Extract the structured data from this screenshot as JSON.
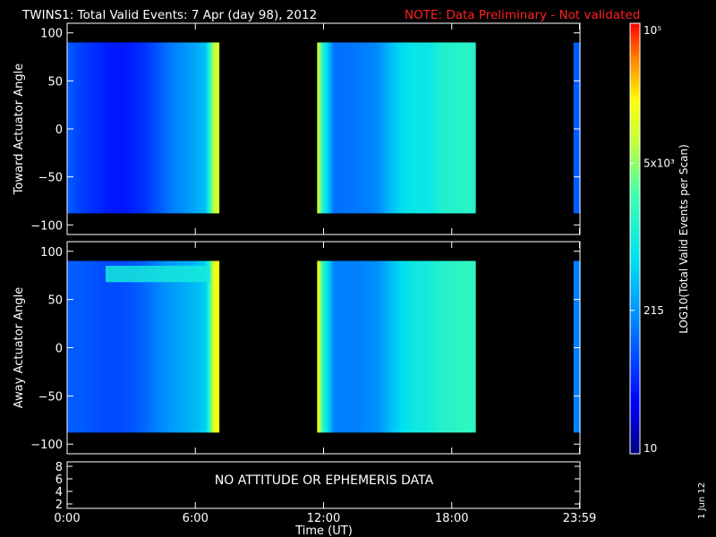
{
  "header": {
    "title": "TWINS1: Total Valid Events:  7 Apr (day  98), 2012",
    "note": "NOTE: Data Preliminary - Not validated",
    "note_color": "#ff2020"
  },
  "footer": {
    "xlabel": "Time (UT)",
    "side_date": "1 Jun 12"
  },
  "colorbar": {
    "label": "LOG10(Total Valid Events per Scan)",
    "tick_labels": [
      "10",
      "215",
      "5x10³",
      "10⁵"
    ],
    "tick_values": [
      10,
      215,
      5000,
      100000
    ]
  },
  "attitude_panel": {
    "message": "NO ATTITUDE OR EPHEMERIS DATA",
    "ytick_labels": [
      "8",
      "6",
      "4",
      "2"
    ]
  },
  "chart_data": [
    {
      "type": "heatmap",
      "ylabel": "Toward Actuator Angle",
      "x_unit": "hours UT",
      "xlim": [
        0,
        24
      ],
      "ylim": [
        -110,
        110
      ],
      "yticks": [
        100,
        50,
        0,
        -50,
        -100
      ],
      "xtick_labels": [
        "0:00",
        "6:00",
        "12:00",
        "18:00",
        "23:59"
      ],
      "xtick_values": [
        0,
        6,
        12,
        18,
        23.98
      ],
      "data_y_range": [
        -88,
        90
      ],
      "coverage_intervals": [
        [
          0,
          7.1
        ],
        [
          11.7,
          19.1
        ],
        [
          23.7,
          24
        ]
      ],
      "profile_hours": [
        0,
        0.6,
        1.2,
        1.8,
        2.4,
        3.0,
        3.6,
        4.2,
        4.8,
        5.4,
        6.0,
        6.5,
        6.9,
        11.75,
        11.95,
        12.5,
        13.5,
        14.5,
        15.2,
        15.7,
        16.3,
        16.9,
        17.5,
        18.2,
        18.8,
        23.8
      ],
      "profile_log10_values": [
        2.0,
        1.85,
        1.75,
        1.65,
        1.6,
        1.65,
        1.75,
        1.95,
        2.15,
        2.3,
        2.45,
        2.6,
        4.0,
        4.0,
        3.2,
        2.1,
        2.15,
        2.25,
        2.6,
        2.8,
        2.9,
        2.9,
        3.1,
        3.15,
        3.2,
        2.0
      ]
    },
    {
      "type": "heatmap",
      "ylabel": "Away Actuator Angle",
      "x_unit": "hours UT",
      "xlim": [
        0,
        24
      ],
      "ylim": [
        -110,
        110
      ],
      "yticks": [
        100,
        50,
        0,
        -50,
        -100
      ],
      "xtick_labels": [
        "0:00",
        "6:00",
        "12:00",
        "18:00",
        "23:59"
      ],
      "xtick_values": [
        0,
        6,
        12,
        18,
        23.98
      ],
      "data_y_range": [
        -88,
        90
      ],
      "coverage_intervals": [
        [
          0,
          7.1
        ],
        [
          11.7,
          19.1
        ],
        [
          23.7,
          24
        ]
      ],
      "profile_hours": [
        0,
        0.6,
        1.2,
        1.8,
        2.4,
        3.0,
        3.6,
        4.2,
        4.8,
        5.4,
        6.0,
        6.5,
        6.9,
        11.75,
        11.95,
        12.5,
        13.5,
        14.5,
        15.2,
        15.7,
        16.3,
        16.9,
        17.5,
        18.2,
        18.8,
        23.8
      ],
      "profile_log10_values": [
        2.0,
        2.0,
        1.95,
        1.9,
        1.9,
        1.95,
        2.05,
        2.2,
        2.35,
        2.45,
        2.55,
        2.7,
        4.2,
        4.2,
        3.3,
        2.2,
        2.2,
        2.3,
        2.6,
        2.8,
        2.95,
        3.0,
        3.15,
        3.2,
        3.25,
        2.2
      ],
      "band": {
        "y_from": 68,
        "y_to": 85,
        "x_from": 1.8,
        "x_to": 6.7,
        "log10_value": 3.0
      }
    }
  ]
}
